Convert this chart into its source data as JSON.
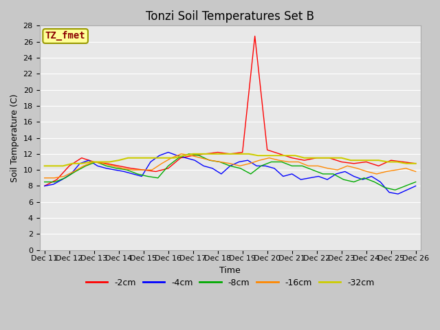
{
  "title": "Tonzi Soil Temperatures Set B",
  "xlabel": "Time",
  "ylabel": "Soil Temperature (C)",
  "ylim": [
    0,
    28
  ],
  "yticks": [
    0,
    2,
    4,
    6,
    8,
    10,
    12,
    14,
    16,
    18,
    20,
    22,
    24,
    26,
    28
  ],
  "background_color": "#e8e8e8",
  "fig_background": "#c8c8c8",
  "grid_color": "#ffffff",
  "annotation_text": "TZ_fmet",
  "annotation_color": "#8b0000",
  "annotation_bg": "#ffff99",
  "annotation_edge": "#999900",
  "series_colors": [
    "#ff0000",
    "#0000ff",
    "#00aa00",
    "#ff8800",
    "#cccc00"
  ],
  "series_labels": [
    "-2cm",
    "-4cm",
    "-8cm",
    "-16cm",
    "-32cm"
  ],
  "series_linewidths": [
    1.0,
    1.0,
    1.0,
    1.0,
    1.5
  ],
  "xtick_labels": [
    "Dec 11",
    "Dec 12",
    "Dec 13",
    "Dec 14",
    "Dec 15",
    "Dec 16",
    "Dec 17",
    "Dec 18",
    "Dec 19",
    "Dec 20",
    "Dec 21",
    "Dec 22",
    "Dec 23",
    "Dec 24",
    "Dec 25",
    "Dec 26"
  ],
  "title_fontsize": 12,
  "axis_label_fontsize": 9,
  "tick_fontsize": 8,
  "legend_fontsize": 9,
  "data_2cm": [
    8.0,
    8.8,
    10.5,
    11.5,
    11.0,
    10.8,
    10.5,
    10.2,
    10.0,
    9.8,
    10.2,
    11.5,
    11.8,
    12.0,
    12.2,
    12.0,
    12.2,
    26.7,
    12.5,
    12.0,
    11.5,
    11.2,
    11.5,
    11.5,
    11.0,
    10.8,
    11.0,
    10.5,
    11.2,
    11.0,
    10.8
  ],
  "data_4cm": [
    8.0,
    8.2,
    8.8,
    9.5,
    10.8,
    11.2,
    10.5,
    10.2,
    10.0,
    9.8,
    9.5,
    9.2,
    11.0,
    11.8,
    12.2,
    11.8,
    11.5,
    11.2,
    10.5,
    10.2,
    9.5,
    10.5,
    11.0,
    11.2,
    10.5,
    10.5,
    10.2,
    9.2,
    9.5,
    8.8,
    9.0,
    9.2,
    8.8,
    9.5,
    9.8,
    9.2,
    8.8,
    9.2,
    8.5,
    7.2,
    7.0,
    7.5,
    8.0
  ],
  "data_8cm": [
    8.5,
    8.5,
    9.0,
    9.8,
    10.5,
    11.0,
    10.5,
    10.2,
    10.0,
    9.5,
    9.2,
    9.0,
    10.5,
    11.5,
    12.0,
    11.8,
    11.2,
    11.0,
    10.5,
    10.2,
    9.5,
    10.5,
    11.0,
    11.0,
    10.5,
    10.5,
    10.0,
    9.5,
    9.5,
    8.8,
    8.5,
    9.0,
    8.5,
    7.8,
    7.5,
    8.0,
    8.5
  ],
  "data_16cm": [
    9.0,
    9.0,
    9.2,
    9.8,
    10.5,
    11.0,
    10.8,
    10.5,
    10.2,
    10.0,
    10.0,
    10.0,
    10.8,
    11.5,
    12.0,
    11.8,
    11.5,
    11.2,
    11.0,
    10.8,
    10.5,
    10.8,
    11.2,
    11.5,
    11.2,
    11.0,
    11.0,
    10.5,
    10.5,
    10.2,
    10.0,
    10.5,
    10.2,
    9.8,
    9.5,
    9.8,
    10.0,
    10.2,
    9.8
  ],
  "data_32cm": [
    10.5,
    10.5,
    10.5,
    10.8,
    10.8,
    11.0,
    11.0,
    11.0,
    11.2,
    11.5,
    11.5,
    11.5,
    11.5,
    11.5,
    11.5,
    11.8,
    12.0,
    12.0,
    12.0,
    12.0,
    12.0,
    12.0,
    12.0,
    11.8,
    11.8,
    11.8,
    11.8,
    11.8,
    11.5,
    11.5,
    11.5,
    11.5,
    11.5,
    11.2,
    11.2,
    11.2,
    11.2,
    11.0,
    11.0,
    10.8,
    10.8
  ]
}
